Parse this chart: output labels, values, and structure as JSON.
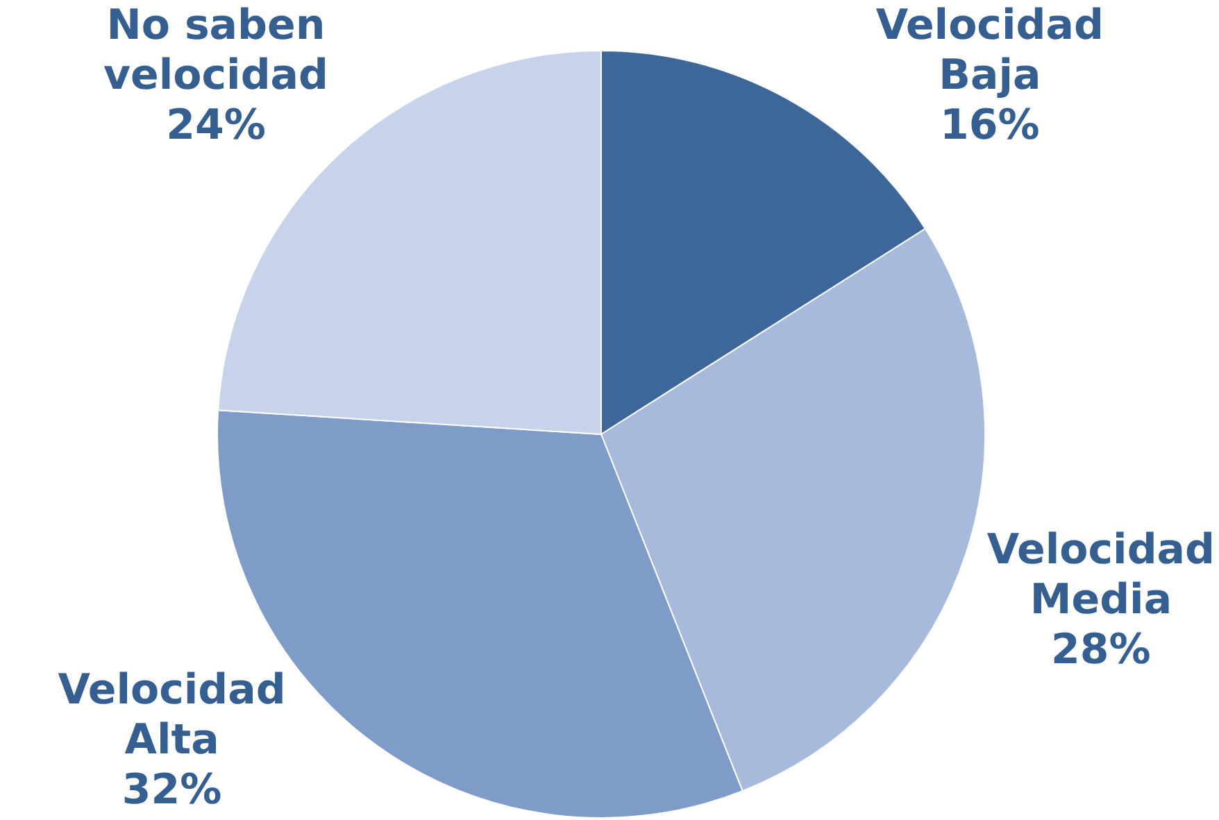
{
  "chart_data": {
    "type": "pie",
    "categories": [
      "Velocidad Baja",
      "Velocidad Media",
      "Velocidad Alta",
      "No saben velocidad"
    ],
    "values": [
      16,
      28,
      32,
      24
    ],
    "value_labels": [
      "16%",
      "28%",
      "32%",
      "24%"
    ],
    "colors": [
      "#3d6699",
      "#a7badb",
      "#7f9cc9",
      "#c6d3ea"
    ],
    "legend": false
  }
}
